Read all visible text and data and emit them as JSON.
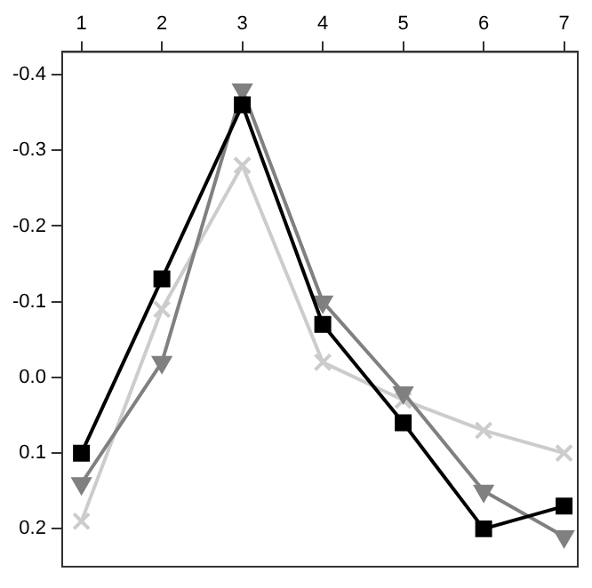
{
  "chart_data": {
    "type": "line",
    "x": [
      1,
      2,
      3,
      4,
      5,
      6,
      7
    ],
    "xlim": [
      0.76,
      7.17
    ],
    "xticks": [
      1,
      2,
      3,
      4,
      5,
      6,
      7
    ],
    "ylim": [
      0.25,
      -0.43
    ],
    "yticks": [
      -0.4,
      -0.3,
      -0.2,
      -0.1,
      {
        "value": 0,
        "label": "0.0"
      },
      0.1,
      0.2
    ],
    "grid": false,
    "legend": false,
    "line_style": "solid",
    "series": [
      {
        "color": "#000000",
        "marker": "square",
        "values": [
          0.1,
          -0.13,
          -0.36,
          -0.07,
          0.06,
          0.2,
          0.17
        ]
      },
      {
        "color": "#808080",
        "marker": "triangle",
        "values": [
          0.14,
          -0.02,
          -0.38,
          -0.1,
          0.02,
          0.15,
          0.21
        ]
      },
      {
        "color": "#cccccc",
        "marker": "cross",
        "values": [
          0.19,
          -0.09,
          -0.28,
          -0.02,
          0.03,
          0.07,
          0.1
        ]
      }
    ]
  }
}
